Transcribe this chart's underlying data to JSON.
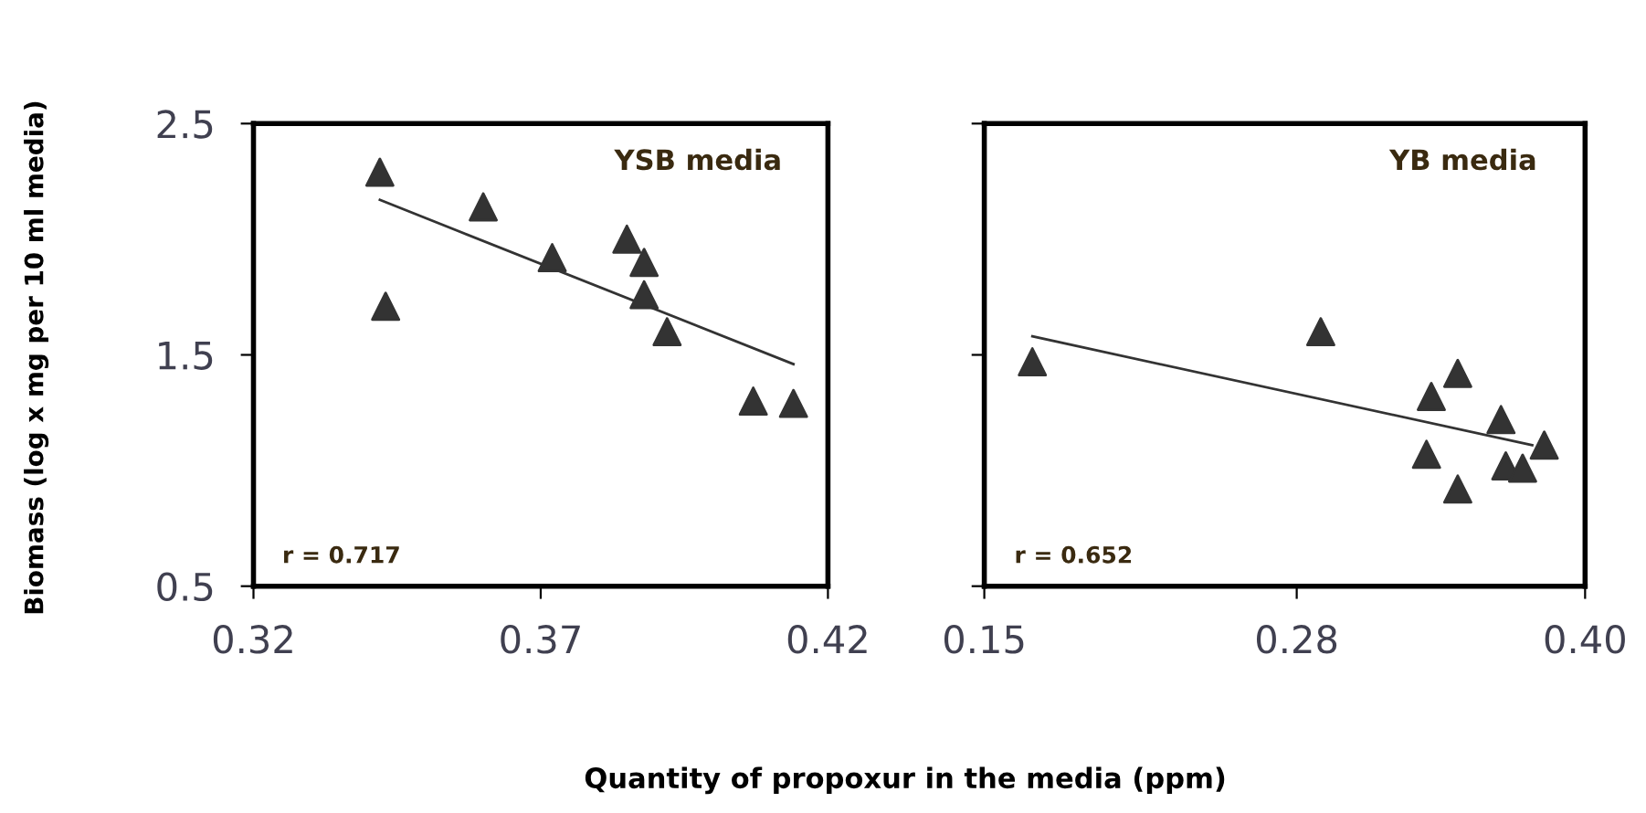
{
  "chart_data": [
    {
      "type": "scatter",
      "ylabel": "Biomass (log x mg per 10 ml media)",
      "xlabel": "Quantity of propoxur in the media (ppm)",
      "annotations": [
        "YSB media",
        "r = 0.717"
      ],
      "xlim": [
        0.32,
        0.42
      ],
      "xticks": [
        0.32,
        0.37,
        0.42
      ],
      "ylim": [
        0.5,
        2.5
      ],
      "yticks": [
        0.5,
        1.5,
        2.5
      ],
      "grid": false,
      "series": [
        {
          "marker": "triangle",
          "color": "#333333",
          "x": [
            0.342,
            0.343,
            0.36,
            0.372,
            0.385,
            0.388,
            0.388,
            0.392,
            0.407,
            0.414
          ],
          "values": [
            2.29,
            1.71,
            2.14,
            1.92,
            2.0,
            1.9,
            1.76,
            1.6,
            1.3,
            1.29
          ]
        },
        {
          "type": "line",
          "color": "#333333",
          "x": [
            0.342,
            0.414
          ],
          "values": [
            2.17,
            1.46
          ]
        }
      ]
    },
    {
      "type": "scatter",
      "annotations": [
        "YB media",
        "r = 0.652"
      ],
      "tick_labels": "x",
      "xlim": [
        0.15,
        0.4
      ],
      "xticks": [
        0.15,
        0.28,
        {
          "value": 0.4,
          "label": "0.40"
        }
      ],
      "ylim": [
        0.5,
        2.5
      ],
      "yticks": [
        0.5,
        1.5,
        2.5
      ],
      "grid": false,
      "series": [
        {
          "marker": "triangle",
          "color": "#333333",
          "x": [
            0.17,
            0.29,
            0.347,
            0.336,
            0.365,
            0.383,
            0.334,
            0.347,
            0.367,
            0.374
          ],
          "values": [
            1.47,
            1.6,
            1.42,
            1.32,
            1.22,
            1.11,
            1.07,
            0.92,
            1.02,
            1.01
          ]
        },
        {
          "type": "line",
          "color": "#333333",
          "x": [
            0.17,
            0.378
          ],
          "values": [
            1.58,
            1.11
          ]
        }
      ]
    }
  ]
}
